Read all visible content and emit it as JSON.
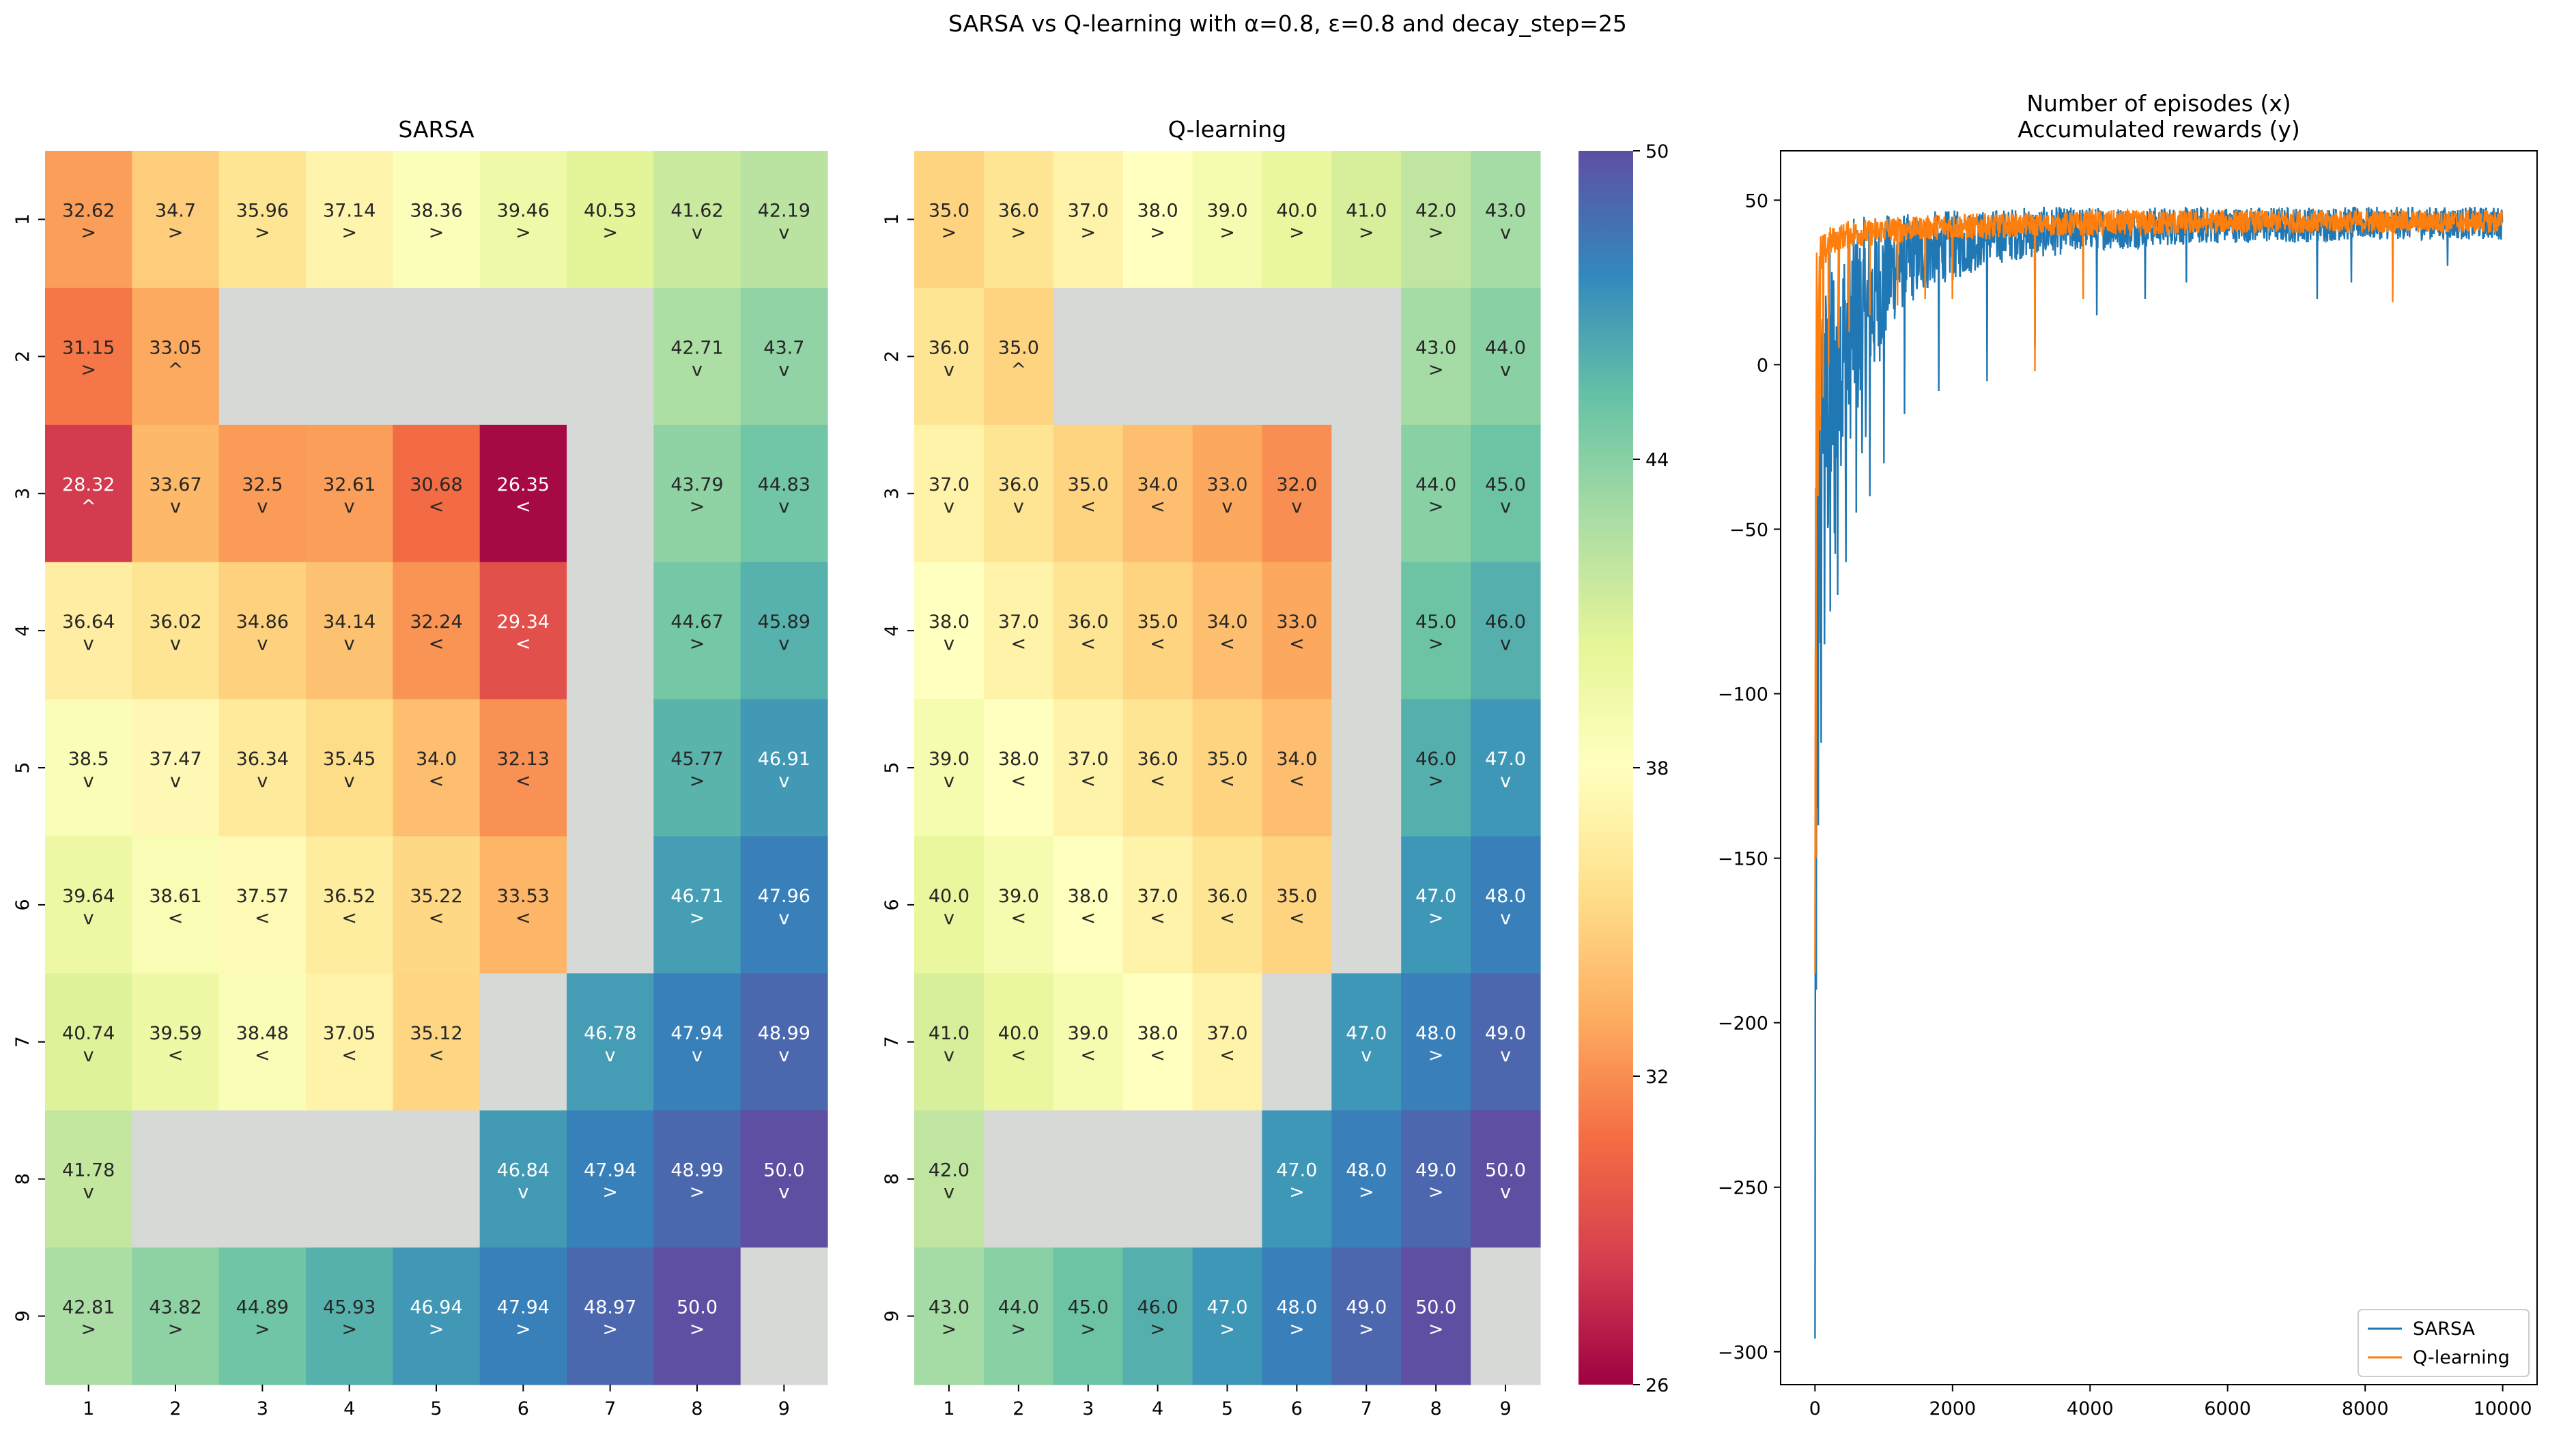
{
  "suptitle": "SARSA vs Q-learning with α=0.8, ε=0.8 and decay_step=25",
  "chart_data": [
    {
      "type": "heatmap",
      "title": "SARSA",
      "x_ticks": [
        "1",
        "2",
        "3",
        "4",
        "5",
        "6",
        "7",
        "8",
        "9"
      ],
      "y_ticks": [
        "1",
        "2",
        "3",
        "4",
        "5",
        "6",
        "7",
        "8",
        "9"
      ],
      "values": [
        [
          32.62,
          34.7,
          35.96,
          37.14,
          38.36,
          39.46,
          40.53,
          41.62,
          42.19
        ],
        [
          31.15,
          33.05,
          null,
          null,
          null,
          null,
          null,
          42.71,
          43.7
        ],
        [
          28.32,
          33.67,
          32.5,
          32.61,
          30.68,
          26.35,
          null,
          43.79,
          44.83
        ],
        [
          36.64,
          36.02,
          34.86,
          34.14,
          32.24,
          29.34,
          null,
          44.67,
          45.89
        ],
        [
          38.5,
          37.47,
          36.34,
          35.45,
          34.0,
          32.13,
          null,
          45.77,
          46.91
        ],
        [
          39.64,
          38.61,
          37.57,
          36.52,
          35.22,
          33.53,
          null,
          46.71,
          47.96
        ],
        [
          40.74,
          39.59,
          38.48,
          37.05,
          35.12,
          null,
          46.78,
          47.94,
          48.99
        ],
        [
          41.78,
          null,
          null,
          null,
          null,
          46.84,
          47.94,
          48.99,
          50.0
        ],
        [
          42.81,
          43.82,
          44.89,
          45.93,
          46.94,
          47.94,
          48.97,
          50.0,
          null
        ]
      ],
      "value_labels": [
        [
          "32.62",
          "34.7",
          "35.96",
          "37.14",
          "38.36",
          "39.46",
          "40.53",
          "41.62",
          "42.19"
        ],
        [
          "31.15",
          "33.05",
          "",
          "",
          "",
          "",
          "",
          "42.71",
          "43.7"
        ],
        [
          "28.32",
          "33.67",
          "32.5",
          "32.61",
          "30.68",
          "26.35",
          "",
          "43.79",
          "44.83"
        ],
        [
          "36.64",
          "36.02",
          "34.86",
          "34.14",
          "32.24",
          "29.34",
          "",
          "44.67",
          "45.89"
        ],
        [
          "38.5",
          "37.47",
          "36.34",
          "35.45",
          "34.0",
          "32.13",
          "",
          "45.77",
          "46.91"
        ],
        [
          "39.64",
          "38.61",
          "37.57",
          "36.52",
          "35.22",
          "33.53",
          "",
          "46.71",
          "47.96"
        ],
        [
          "40.74",
          "39.59",
          "38.48",
          "37.05",
          "35.12",
          "",
          "46.78",
          "47.94",
          "48.99"
        ],
        [
          "41.78",
          "",
          "",
          "",
          "",
          "46.84",
          "47.94",
          "48.99",
          "50.0"
        ],
        [
          "42.81",
          "43.82",
          "44.89",
          "45.93",
          "46.94",
          "47.94",
          "48.97",
          "50.0",
          ""
        ]
      ],
      "arrows": [
        [
          ">",
          ">",
          ">",
          ">",
          ">",
          ">",
          ">",
          "v",
          "v"
        ],
        [
          ">",
          "^",
          "",
          "",
          "",
          "",
          "",
          "v",
          "v"
        ],
        [
          "^",
          "v",
          "v",
          "v",
          "<",
          "<",
          "",
          ">",
          "v"
        ],
        [
          "v",
          "v",
          "v",
          "v",
          "<",
          "<",
          "",
          ">",
          "v"
        ],
        [
          "v",
          "v",
          "v",
          "v",
          "<",
          "<",
          "",
          ">",
          "v"
        ],
        [
          "v",
          "<",
          "<",
          "<",
          "<",
          "<",
          "",
          ">",
          "v"
        ],
        [
          "v",
          "<",
          "<",
          "<",
          "<",
          "",
          "v",
          "v",
          "v"
        ],
        [
          "v",
          "",
          "",
          "",
          "",
          "v",
          ">",
          ">",
          "v"
        ],
        [
          ">",
          ">",
          ">",
          ">",
          ">",
          ">",
          ">",
          ">",
          ""
        ]
      ]
    },
    {
      "type": "heatmap",
      "title": "Q-learning",
      "x_ticks": [
        "1",
        "2",
        "3",
        "4",
        "5",
        "6",
        "7",
        "8",
        "9"
      ],
      "y_ticks": [
        "1",
        "2",
        "3",
        "4",
        "5",
        "6",
        "7",
        "8",
        "9"
      ],
      "values": [
        [
          35.0,
          36.0,
          37.0,
          38.0,
          39.0,
          40.0,
          41.0,
          42.0,
          43.0
        ],
        [
          36.0,
          35.0,
          null,
          null,
          null,
          null,
          null,
          43.0,
          44.0
        ],
        [
          37.0,
          36.0,
          35.0,
          34.0,
          33.0,
          32.0,
          null,
          44.0,
          45.0
        ],
        [
          38.0,
          37.0,
          36.0,
          35.0,
          34.0,
          33.0,
          null,
          45.0,
          46.0
        ],
        [
          39.0,
          38.0,
          37.0,
          36.0,
          35.0,
          34.0,
          null,
          46.0,
          47.0
        ],
        [
          40.0,
          39.0,
          38.0,
          37.0,
          36.0,
          35.0,
          null,
          47.0,
          48.0
        ],
        [
          41.0,
          40.0,
          39.0,
          38.0,
          37.0,
          null,
          47.0,
          48.0,
          49.0
        ],
        [
          42.0,
          null,
          null,
          null,
          null,
          47.0,
          48.0,
          49.0,
          50.0
        ],
        [
          43.0,
          44.0,
          45.0,
          46.0,
          47.0,
          48.0,
          49.0,
          50.0,
          null
        ]
      ],
      "value_labels": [
        [
          "35.0",
          "36.0",
          "37.0",
          "38.0",
          "39.0",
          "40.0",
          "41.0",
          "42.0",
          "43.0"
        ],
        [
          "36.0",
          "35.0",
          "",
          "",
          "",
          "",
          "",
          "43.0",
          "44.0"
        ],
        [
          "37.0",
          "36.0",
          "35.0",
          "34.0",
          "33.0",
          "32.0",
          "",
          "44.0",
          "45.0"
        ],
        [
          "38.0",
          "37.0",
          "36.0",
          "35.0",
          "34.0",
          "33.0",
          "",
          "45.0",
          "46.0"
        ],
        [
          "39.0",
          "38.0",
          "37.0",
          "36.0",
          "35.0",
          "34.0",
          "",
          "46.0",
          "47.0"
        ],
        [
          "40.0",
          "39.0",
          "38.0",
          "37.0",
          "36.0",
          "35.0",
          "",
          "47.0",
          "48.0"
        ],
        [
          "41.0",
          "40.0",
          "39.0",
          "38.0",
          "37.0",
          "",
          "47.0",
          "48.0",
          "49.0"
        ],
        [
          "42.0",
          "",
          "",
          "",
          "",
          "47.0",
          "48.0",
          "49.0",
          "50.0"
        ],
        [
          "43.0",
          "44.0",
          "45.0",
          "46.0",
          "47.0",
          "48.0",
          "49.0",
          "50.0",
          ""
        ]
      ],
      "arrows": [
        [
          ">",
          ">",
          ">",
          ">",
          ">",
          ">",
          ">",
          ">",
          "v"
        ],
        [
          "v",
          "^",
          "",
          "",
          "",
          "",
          "",
          ">",
          "v"
        ],
        [
          "v",
          "v",
          "<",
          "<",
          "v",
          "v",
          "",
          ">",
          "v"
        ],
        [
          "v",
          "<",
          "<",
          "<",
          "<",
          "<",
          "",
          ">",
          "v"
        ],
        [
          "v",
          "<",
          "<",
          "<",
          "<",
          "<",
          "",
          ">",
          "v"
        ],
        [
          "v",
          "<",
          "<",
          "<",
          "<",
          "<",
          "",
          ">",
          "v"
        ],
        [
          "v",
          "<",
          "<",
          "<",
          "<",
          "",
          "v",
          ">",
          "v"
        ],
        [
          "v",
          "",
          "",
          "",
          "",
          ">",
          ">",
          ">",
          "v"
        ],
        [
          ">",
          ">",
          ">",
          ">",
          ">",
          ">",
          ">",
          ">",
          ""
        ]
      ]
    },
    {
      "type": "colorbar",
      "colormap": "Spectral",
      "range": [
        26,
        50
      ],
      "ticks": [
        "26",
        "32",
        "38",
        "44",
        "50"
      ],
      "empty_cell_color": "#d6d9d6"
    },
    {
      "type": "line",
      "title_lines": [
        "Number of episodes (x)",
        "Accumulated rewards (y)"
      ],
      "xlim": [
        -500,
        10500
      ],
      "ylim": [
        -310,
        65
      ],
      "x_ticks": [
        0,
        2000,
        4000,
        6000,
        8000,
        10000
      ],
      "x_tick_labels": [
        "0",
        "2000",
        "4000",
        "6000",
        "8000",
        "10000"
      ],
      "y_ticks": [
        50,
        0,
        -50,
        -100,
        -150,
        -200,
        -250,
        -300
      ],
      "y_tick_labels": [
        "50",
        "0",
        "−50",
        "−100",
        "−150",
        "−200",
        "−250",
        "−300"
      ],
      "legend_position": "lower-right",
      "series": [
        {
          "name": "SARSA",
          "color": "#1f77b4",
          "x": [
            0,
            10,
            20,
            30,
            40,
            60,
            80,
            100,
            130,
            160,
            200,
            250,
            300,
            350,
            400,
            500,
            600,
            700,
            800,
            1000,
            1200,
            1500,
            1800,
            2000,
            2500,
            3000,
            3500,
            4000,
            4500,
            5000,
            6000,
            7000,
            8000,
            9000,
            10000
          ],
          "y": [
            -296,
            -85,
            12,
            -180,
            -140,
            -60,
            -110,
            -40,
            -30,
            -80,
            -60,
            -50,
            -70,
            -20,
            -40,
            -25,
            -15,
            -30,
            -10,
            5,
            15,
            20,
            25,
            25,
            30,
            32,
            33,
            35,
            35,
            36,
            37,
            37,
            38,
            38,
            38
          ],
          "high": [
            -150,
            -30,
            15,
            -50,
            -20,
            10,
            0,
            20,
            25,
            30,
            35,
            40,
            42,
            40,
            42,
            44,
            45,
            45,
            46,
            46,
            46,
            46,
            47,
            47,
            47,
            48,
            48,
            48,
            48,
            48,
            48,
            48,
            48,
            48,
            48
          ],
          "spikes": [
            [
              0,
              -296
            ],
            [
              15,
              -190
            ],
            [
              50,
              -140
            ],
            [
              90,
              -115
            ],
            [
              140,
              -85
            ],
            [
              220,
              -75
            ],
            [
              330,
              -70
            ],
            [
              450,
              -60
            ],
            [
              600,
              -45
            ],
            [
              800,
              -40
            ],
            [
              1000,
              -30
            ],
            [
              1300,
              -15
            ],
            [
              1800,
              -8
            ],
            [
              2500,
              -5
            ],
            [
              3200,
              5
            ],
            [
              4100,
              15
            ],
            [
              4800,
              20
            ],
            [
              5400,
              25
            ],
            [
              7300,
              20
            ],
            [
              7800,
              25
            ],
            [
              9200,
              30
            ]
          ]
        },
        {
          "name": "Q-learning",
          "color": "#ff7f0e",
          "x": [
            0,
            10,
            20,
            30,
            40,
            60,
            80,
            100,
            130,
            160,
            200,
            250,
            300,
            350,
            400,
            500,
            600,
            700,
            800,
            1000,
            1200,
            1500,
            1800,
            2000,
            2500,
            3000,
            3500,
            4000,
            4500,
            5000,
            6000,
            7000,
            8000,
            9000,
            10000
          ],
          "y": [
            -185,
            -90,
            10,
            20,
            -30,
            15,
            25,
            28,
            30,
            30,
            32,
            33,
            34,
            35,
            35,
            35,
            36,
            36,
            36,
            37,
            37,
            38,
            38,
            38,
            38,
            39,
            39,
            39,
            39,
            39,
            40,
            40,
            40,
            40,
            40
          ],
          "high": [
            -80,
            0,
            35,
            40,
            40,
            38,
            40,
            40,
            40,
            40,
            42,
            42,
            42,
            43,
            43,
            44,
            44,
            44,
            44,
            45,
            45,
            45,
            46,
            46,
            46,
            46,
            46,
            47,
            47,
            47,
            47,
            47,
            47,
            47,
            47
          ],
          "spikes": [
            [
              0,
              -185
            ],
            [
              10,
              -150
            ],
            [
              40,
              -40
            ],
            [
              70,
              -20
            ],
            [
              120,
              -10
            ],
            [
              200,
              0
            ],
            [
              350,
              5
            ],
            [
              500,
              10
            ],
            [
              800,
              15
            ],
            [
              1200,
              18
            ],
            [
              1600,
              20
            ],
            [
              2000,
              20
            ],
            [
              3200,
              -2
            ],
            [
              3900,
              20
            ],
            [
              8400,
              19
            ]
          ]
        }
      ]
    }
  ]
}
